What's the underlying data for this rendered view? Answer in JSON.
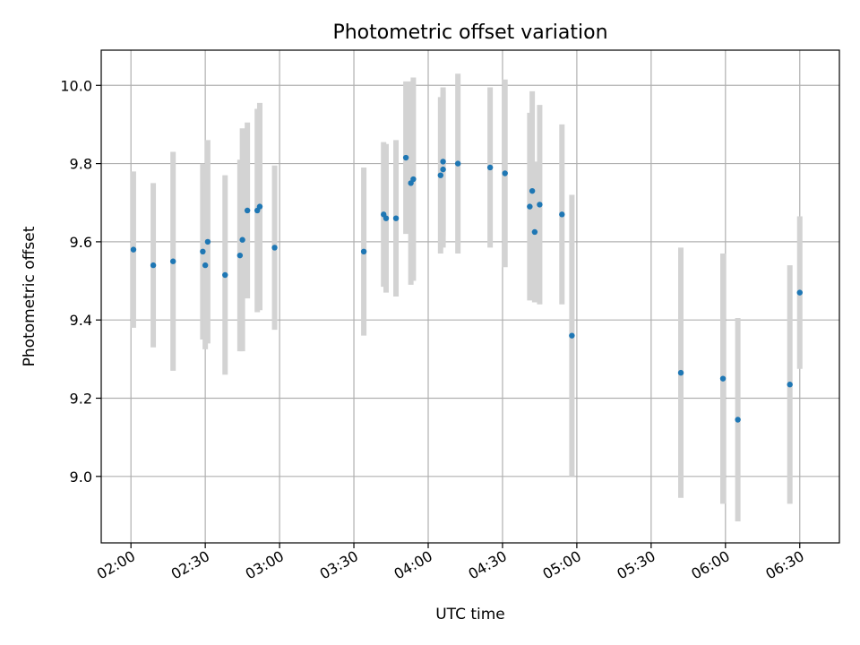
{
  "chart_data": {
    "type": "scatter",
    "title": "Photometric offset variation",
    "xlabel": "UTC time",
    "ylabel": "Photometric offset",
    "xlim": [
      "01:48",
      "06:46"
    ],
    "ylim": [
      8.83,
      10.09
    ],
    "x_ticks": [
      "02:00",
      "02:30",
      "03:00",
      "03:30",
      "04:00",
      "04:30",
      "05:00",
      "05:30",
      "06:00",
      "06:30"
    ],
    "y_ticks": [
      "9.0",
      "9.2",
      "9.4",
      "9.6",
      "9.8",
      "10.0"
    ],
    "grid": true,
    "marker_color": "#1f77b4",
    "errorbar_color": "#d3d3d3",
    "series": [
      {
        "points": [
          {
            "x": "02:01",
            "y": 9.58,
            "err": 0.2
          },
          {
            "x": "02:09",
            "y": 9.54,
            "err": 0.21
          },
          {
            "x": "02:17",
            "y": 9.55,
            "err": 0.28
          },
          {
            "x": "02:29",
            "y": 9.575,
            "err": 0.225
          },
          {
            "x": "02:30",
            "y": 9.54,
            "err": 0.215
          },
          {
            "x": "02:31",
            "y": 9.6,
            "err": 0.26
          },
          {
            "x": "02:38",
            "y": 9.515,
            "err": 0.255
          },
          {
            "x": "02:44",
            "y": 9.565,
            "err": 0.245
          },
          {
            "x": "02:45",
            "y": 9.605,
            "err": 0.285
          },
          {
            "x": "02:47",
            "y": 9.68,
            "err": 0.225
          },
          {
            "x": "02:51",
            "y": 9.68,
            "err": 0.26
          },
          {
            "x": "02:52",
            "y": 9.69,
            "err": 0.265
          },
          {
            "x": "02:58",
            "y": 9.585,
            "err": 0.21
          },
          {
            "x": "03:34",
            "y": 9.575,
            "err": 0.215
          },
          {
            "x": "03:42",
            "y": 9.67,
            "err": 0.185
          },
          {
            "x": "03:43",
            "y": 9.66,
            "err": 0.19
          },
          {
            "x": "03:47",
            "y": 9.66,
            "err": 0.2
          },
          {
            "x": "03:51",
            "y": 9.815,
            "err": 0.195
          },
          {
            "x": "03:53",
            "y": 9.75,
            "err": 0.26
          },
          {
            "x": "03:54",
            "y": 9.76,
            "err": 0.26
          },
          {
            "x": "04:05",
            "y": 9.77,
            "err": 0.2
          },
          {
            "x": "04:06",
            "y": 9.785,
            "err": 0.2
          },
          {
            "x": "04:06",
            "y": 9.805,
            "err": 0.19
          },
          {
            "x": "04:12",
            "y": 9.8,
            "err": 0.23
          },
          {
            "x": "04:25",
            "y": 9.79,
            "err": 0.205
          },
          {
            "x": "04:31",
            "y": 9.775,
            "err": 0.24
          },
          {
            "x": "04:41",
            "y": 9.69,
            "err": 0.24
          },
          {
            "x": "04:42",
            "y": 9.73,
            "err": 0.255
          },
          {
            "x": "04:43",
            "y": 9.625,
            "err": 0.18
          },
          {
            "x": "04:45",
            "y": 9.695,
            "err": 0.255
          },
          {
            "x": "04:54",
            "y": 9.67,
            "err": 0.23
          },
          {
            "x": "04:58",
            "y": 9.36,
            "err": 0.36
          },
          {
            "x": "05:42",
            "y": 9.265,
            "err": 0.32
          },
          {
            "x": "05:59",
            "y": 9.25,
            "err": 0.32
          },
          {
            "x": "06:05",
            "y": 9.145,
            "err": 0.26
          },
          {
            "x": "06:26",
            "y": 9.235,
            "err": 0.305
          },
          {
            "x": "06:30",
            "y": 9.47,
            "err": 0.195
          }
        ]
      }
    ]
  }
}
